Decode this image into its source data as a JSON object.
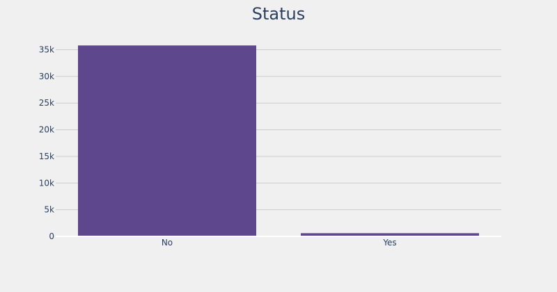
{
  "chart_data": {
    "type": "bar",
    "title": "Status",
    "categories": [
      "No",
      "Yes"
    ],
    "values": [
      35800,
      600
    ],
    "xlabel": "",
    "ylabel": "",
    "ylim": [
      0,
      36500
    ],
    "yticks": [
      0,
      5000,
      10000,
      15000,
      20000,
      25000,
      30000,
      35000
    ],
    "ytick_labels": [
      "0",
      "5k",
      "10k",
      "15k",
      "20k",
      "25k",
      "30k",
      "35k"
    ],
    "grid": true,
    "bar_color": "#5e478d",
    "grid_color": "#cccccc",
    "text_color": "#2a3f5f"
  }
}
